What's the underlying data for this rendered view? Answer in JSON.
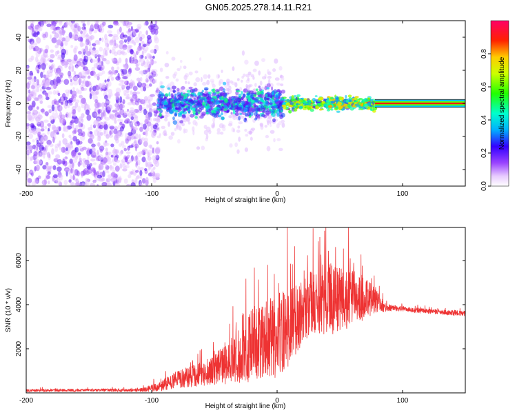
{
  "title": "GN05.2025.278.14.11.R21",
  "colors": {
    "snr_line": "#ee3333",
    "axis": "#000000",
    "background": "#ffffff"
  },
  "chart_data": [
    {
      "type": "heatmap",
      "xlabel": "Height of straight line (km)",
      "ylabel": "Frequency (Hz)",
      "xlim": [
        -200,
        150
      ],
      "ylim": [
        -50,
        50
      ],
      "xticks": [
        -200,
        -100,
        0,
        100
      ],
      "yticks": [
        -40,
        -20,
        0,
        20,
        40
      ],
      "colorbar": {
        "label": "Normalized spectral amplitude",
        "range": [
          0,
          1
        ],
        "ticks": [
          0.0,
          0.2,
          0.4,
          0.6,
          0.8
        ],
        "tick_labels": [
          "0.0",
          "0.2",
          "0.4",
          "0.6",
          "0.8"
        ]
      },
      "description_regions": [
        {
          "x_from": -200,
          "x_to": -95,
          "freq_spread": 50,
          "amplitude": "low"
        },
        {
          "x_from": -95,
          "x_to": 5,
          "freq_spread": 8,
          "amplitude": "medium"
        },
        {
          "x_from": 5,
          "x_to": 80,
          "freq_spread": 4,
          "amplitude": "high"
        },
        {
          "x_from": 80,
          "x_to": 150,
          "freq_spread": 1,
          "amplitude": "max"
        }
      ]
    },
    {
      "type": "line",
      "xlabel": "Height of straight line (km)",
      "ylabel": "SNR (10 * v/v)",
      "xlim": [
        -200,
        150
      ],
      "ylim": [
        0,
        7500
      ],
      "xticks": [
        -200,
        -100,
        0,
        100
      ],
      "yticks": [
        2000,
        4000,
        6000
      ],
      "series": [
        {
          "name": "SNR",
          "envelope": {
            "x": [
              -200,
              -150,
              -110,
              -95,
              -80,
              -60,
              -40,
              -20,
              0,
              10,
              20,
              30,
              40,
              50,
              60,
              70,
              80,
              85,
              90,
              100,
              120,
              150
            ],
            "base": [
              100,
              120,
              120,
              250,
              600,
              850,
              1300,
              2200,
              2600,
              3000,
              3700,
              4100,
              4300,
              4200,
              4250,
              4350,
              4150,
              3900,
              3850,
              3800,
              3700,
              3600
            ],
            "amp": [
              60,
              60,
              80,
              200,
              400,
              550,
              900,
              1700,
              1900,
              1800,
              1500,
              1600,
              1700,
              1500,
              1300,
              1000,
              500,
              250,
              150,
              120,
              120,
              120
            ]
          }
        }
      ]
    }
  ]
}
